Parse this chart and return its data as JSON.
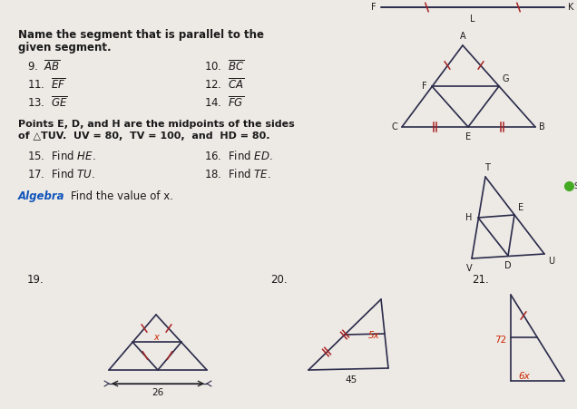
{
  "bg_color": "#edeae5",
  "text_color": "#1a1a1a",
  "line_color": "#2a2a4a",
  "tick_color": "#aa2222",
  "red_color": "#cc2200",
  "blue_color": "#1155bb",
  "green_dot_color": "#44aa22",
  "title1": "Name the segment that is parallel to the",
  "title1b": "given segment.",
  "bold_text": "Points E, D, and H are the midpoints of the sides",
  "bold_text2": "of △TUV.  UV = 80,  TV = 100,  and  HD = 80.",
  "algebra_label": "Algebra",
  "algebra_text": "Find the value of x."
}
